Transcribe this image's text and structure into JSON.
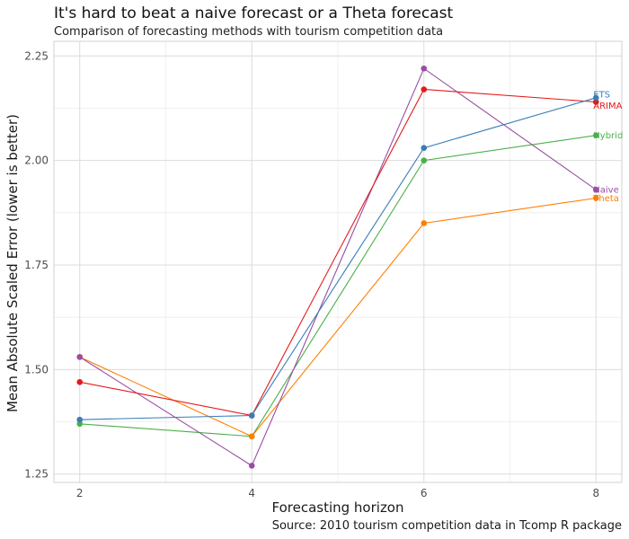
{
  "chart_data": {
    "type": "line",
    "title": "It's hard to beat a naive forecast or a Theta forecast",
    "subtitle": "Comparison of forecasting methods with tourism competition data",
    "xlabel": "Forecasting horizon",
    "ylabel": "Mean Absolute Scaled Error  (lower is better)",
    "caption": "Source: 2010 tourism competition data in Tcomp R package",
    "x": [
      2,
      4,
      6,
      8
    ],
    "x_ticks": [
      "2",
      "4",
      "6",
      "8"
    ],
    "y_ticks": [
      "1.25",
      "1.50",
      "1.75",
      "2.00",
      "2.25"
    ],
    "xlim": [
      1.7,
      8.3
    ],
    "ylim": [
      1.23,
      2.285
    ],
    "grid": true,
    "legend": "direct labels at line ends",
    "series": [
      {
        "name": "Hybrid",
        "color": "#4DAF4A",
        "values": [
          1.37,
          1.34,
          2.0,
          2.06
        ]
      },
      {
        "name": "Theta",
        "color": "#FF7F00",
        "values": [
          1.53,
          1.34,
          1.85,
          1.91
        ]
      },
      {
        "name": "Naive",
        "color": "#984EA3",
        "values": [
          1.53,
          1.27,
          2.22,
          1.93
        ]
      },
      {
        "name": "ARIMA",
        "color": "#E41A1C",
        "values": [
          1.47,
          1.39,
          2.17,
          2.14
        ]
      },
      {
        "name": "ETS",
        "color": "#377EB8",
        "values": [
          1.38,
          1.39,
          2.03,
          2.15
        ]
      }
    ]
  }
}
